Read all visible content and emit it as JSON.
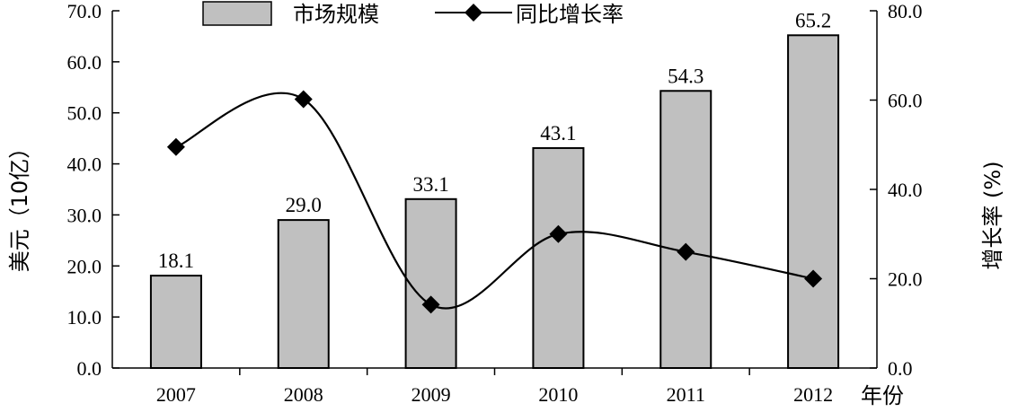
{
  "chart_data": {
    "type": "bar",
    "categories": [
      "2007",
      "2008",
      "2009",
      "2010",
      "2011",
      "2012"
    ],
    "xlabel": "年份",
    "ylabel": "美元（10亿）",
    "y2label": "增长率 (%)",
    "ylim": [
      0,
      70
    ],
    "y2lim": [
      0,
      80
    ],
    "yticks": [
      "0.0",
      "10.0",
      "20.0",
      "30.0",
      "40.0",
      "50.0",
      "60.0",
      "70.0"
    ],
    "y2ticks": [
      "0.0",
      "20.0",
      "40.0",
      "60.0",
      "80.0"
    ],
    "grid": false,
    "legend_position": "top-center",
    "series": [
      {
        "name": "市场规模",
        "type": "bar",
        "axis": "left",
        "values": [
          18.1,
          29.0,
          33.1,
          43.1,
          54.3,
          65.2
        ],
        "labels": [
          "18.1",
          "29.0",
          "33.1",
          "43.1",
          "54.3",
          "65.2"
        ],
        "color": "#c0c0c0"
      },
      {
        "name": "同比增长率",
        "type": "line",
        "axis": "right",
        "smooth": true,
        "marker": "diamond",
        "values": [
          49.5,
          60.2,
          14.2,
          30.0,
          26.0,
          20.0
        ],
        "color": "#000000"
      }
    ]
  }
}
